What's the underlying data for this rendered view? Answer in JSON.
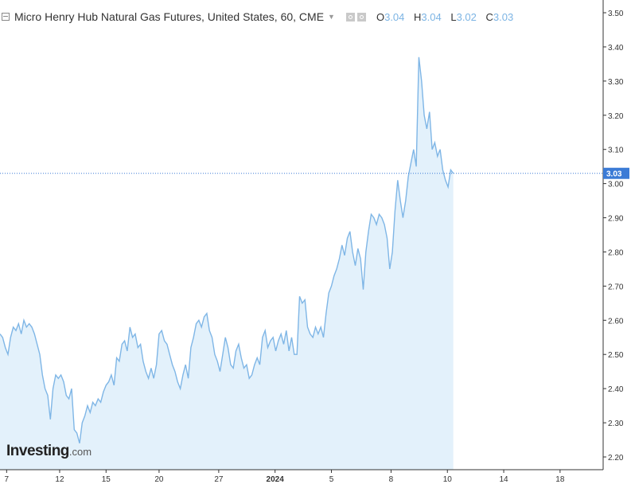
{
  "header": {
    "title": "Micro Henry Hub Natural Gas Futures, United States, 60, CME",
    "ohlc": [
      {
        "key": "O",
        "value": "3.04"
      },
      {
        "key": "H",
        "value": "3.04"
      },
      {
        "key": "L",
        "value": "3.02"
      },
      {
        "key": "C",
        "value": "3.03"
      }
    ]
  },
  "logo": {
    "brand": "Investing",
    "suffix": ".com"
  },
  "colors": {
    "line": "#7fb6e6",
    "fill": "#e3f1fb",
    "price_badge": "#3b7bd6",
    "axis": "#333333",
    "grid": "#eeeeee"
  },
  "chart_data": {
    "type": "area",
    "title": "",
    "xlabel": "",
    "ylabel": "",
    "ylim": [
      2.18,
      3.52
    ],
    "yticks": [
      "2.20",
      "2.30",
      "2.40",
      "2.50",
      "2.60",
      "2.70",
      "2.80",
      "2.90",
      "3.00",
      "3.10",
      "3.20",
      "3.30",
      "3.40",
      "3.50"
    ],
    "xticks": [
      "7",
      "12",
      "15",
      "20",
      "27",
      "2024",
      "5",
      "8",
      "10",
      "14",
      "18"
    ],
    "xtick_positions": [
      1,
      9,
      16,
      24,
      33,
      41.5,
      50,
      59,
      67.5,
      76,
      84.5
    ],
    "xlim": [
      0,
      91
    ],
    "last_price": "3.03",
    "series": [
      {
        "x": [
          0,
          0.4,
          0.8,
          1.2,
          1.6,
          2.0,
          2.4,
          2.8,
          3.2,
          3.6,
          4.0,
          4.4,
          4.8,
          5.2,
          6,
          6.4,
          6.8,
          7.2,
          7.6,
          8.0,
          8.4,
          8.8,
          9.2,
          9.6,
          10.0,
          10.4,
          10.8,
          11.2,
          11.6,
          12.0,
          12.4,
          12.8,
          13.2,
          13.6,
          14.0,
          14.4,
          14.8,
          15.2,
          15.6,
          16.0,
          16.4,
          16.8,
          17.2,
          17.6,
          18.0,
          18.4,
          18.8,
          19.2,
          19.6,
          20.0,
          20.4,
          20.8,
          21.2,
          21.6,
          22.0,
          22.4,
          22.8,
          23.2,
          23.6,
          24.0,
          24.4,
          24.8,
          25.2,
          25.6,
          26.0,
          26.4,
          26.8,
          27.2,
          27.6,
          28.0,
          28.4,
          28.8,
          29.2,
          29.6,
          30.0,
          30.4,
          30.8,
          31.2,
          31.6,
          32.0,
          32.4,
          32.8,
          33.2,
          33.6,
          34.0,
          34.4,
          34.8,
          35.2,
          35.6,
          36.0,
          36.4,
          36.8,
          37.2,
          37.6,
          38.0,
          38.4,
          38.8,
          39.2,
          39.6,
          40.0,
          40.4,
          40.8,
          41.2,
          41.6,
          42.0,
          42.4,
          42.8,
          43.2,
          43.6,
          44.0,
          44.4,
          44.8,
          45.2,
          45.6,
          46.0,
          46.4,
          46.8,
          47.2,
          47.6,
          48.0,
          48.4,
          48.8,
          49.2,
          49.6,
          50.0,
          50.4,
          50.8,
          51.2,
          51.6,
          52.0,
          52.4,
          52.8,
          53.2,
          53.6,
          54.0,
          54.4,
          54.8,
          55.2,
          55.6,
          56.0,
          56.4,
          56.8,
          57.2,
          57.6,
          58.0,
          58.4,
          58.8,
          59.2,
          59.6,
          60.0,
          60.4,
          60.8,
          61.2,
          61.6,
          62.0,
          62.4,
          62.8,
          63.2,
          63.6,
          64.0,
          64.4,
          64.8,
          65.2,
          65.6,
          66.0,
          66.4,
          66.8,
          67.2,
          67.6,
          68.0,
          68.4
        ],
        "values": [
          2.56,
          2.55,
          2.52,
          2.5,
          2.55,
          2.58,
          2.57,
          2.59,
          2.56,
          2.6,
          2.58,
          2.59,
          2.58,
          2.56,
          2.5,
          2.44,
          2.4,
          2.38,
          2.31,
          2.4,
          2.44,
          2.43,
          2.44,
          2.42,
          2.38,
          2.37,
          2.4,
          2.28,
          2.27,
          2.24,
          2.3,
          2.32,
          2.35,
          2.33,
          2.36,
          2.35,
          2.37,
          2.36,
          2.39,
          2.41,
          2.42,
          2.44,
          2.41,
          2.49,
          2.48,
          2.53,
          2.54,
          2.51,
          2.58,
          2.55,
          2.56,
          2.52,
          2.53,
          2.48,
          2.45,
          2.43,
          2.46,
          2.43,
          2.47,
          2.56,
          2.57,
          2.54,
          2.53,
          2.5,
          2.47,
          2.45,
          2.42,
          2.4,
          2.44,
          2.47,
          2.43,
          2.52,
          2.55,
          2.59,
          2.6,
          2.58,
          2.61,
          2.62,
          2.57,
          2.55,
          2.5,
          2.48,
          2.45,
          2.5,
          2.55,
          2.52,
          2.47,
          2.46,
          2.51,
          2.53,
          2.49,
          2.46,
          2.47,
          2.43,
          2.44,
          2.47,
          2.49,
          2.47,
          2.55,
          2.57,
          2.52,
          2.54,
          2.55,
          2.51,
          2.54,
          2.56,
          2.53,
          2.57,
          2.51,
          2.55,
          2.5,
          2.5,
          2.67,
          2.65,
          2.66,
          2.58,
          2.56,
          2.55,
          2.58,
          2.56,
          2.58,
          2.55,
          2.62,
          2.68,
          2.7,
          2.73,
          2.75,
          2.78,
          2.82,
          2.79,
          2.84,
          2.86,
          2.8,
          2.76,
          2.81,
          2.78,
          2.69,
          2.8,
          2.86,
          2.91,
          2.9,
          2.88,
          2.91,
          2.9,
          2.88,
          2.84,
          2.75,
          2.8,
          2.92,
          3.01,
          2.95,
          2.9,
          2.95,
          3.02,
          3.06,
          3.1,
          3.05,
          3.37,
          3.3,
          3.2,
          3.16,
          3.21,
          3.1,
          3.12,
          3.08,
          3.1,
          3.04,
          3.01,
          2.99,
          3.04,
          3.03
        ]
      }
    ]
  }
}
